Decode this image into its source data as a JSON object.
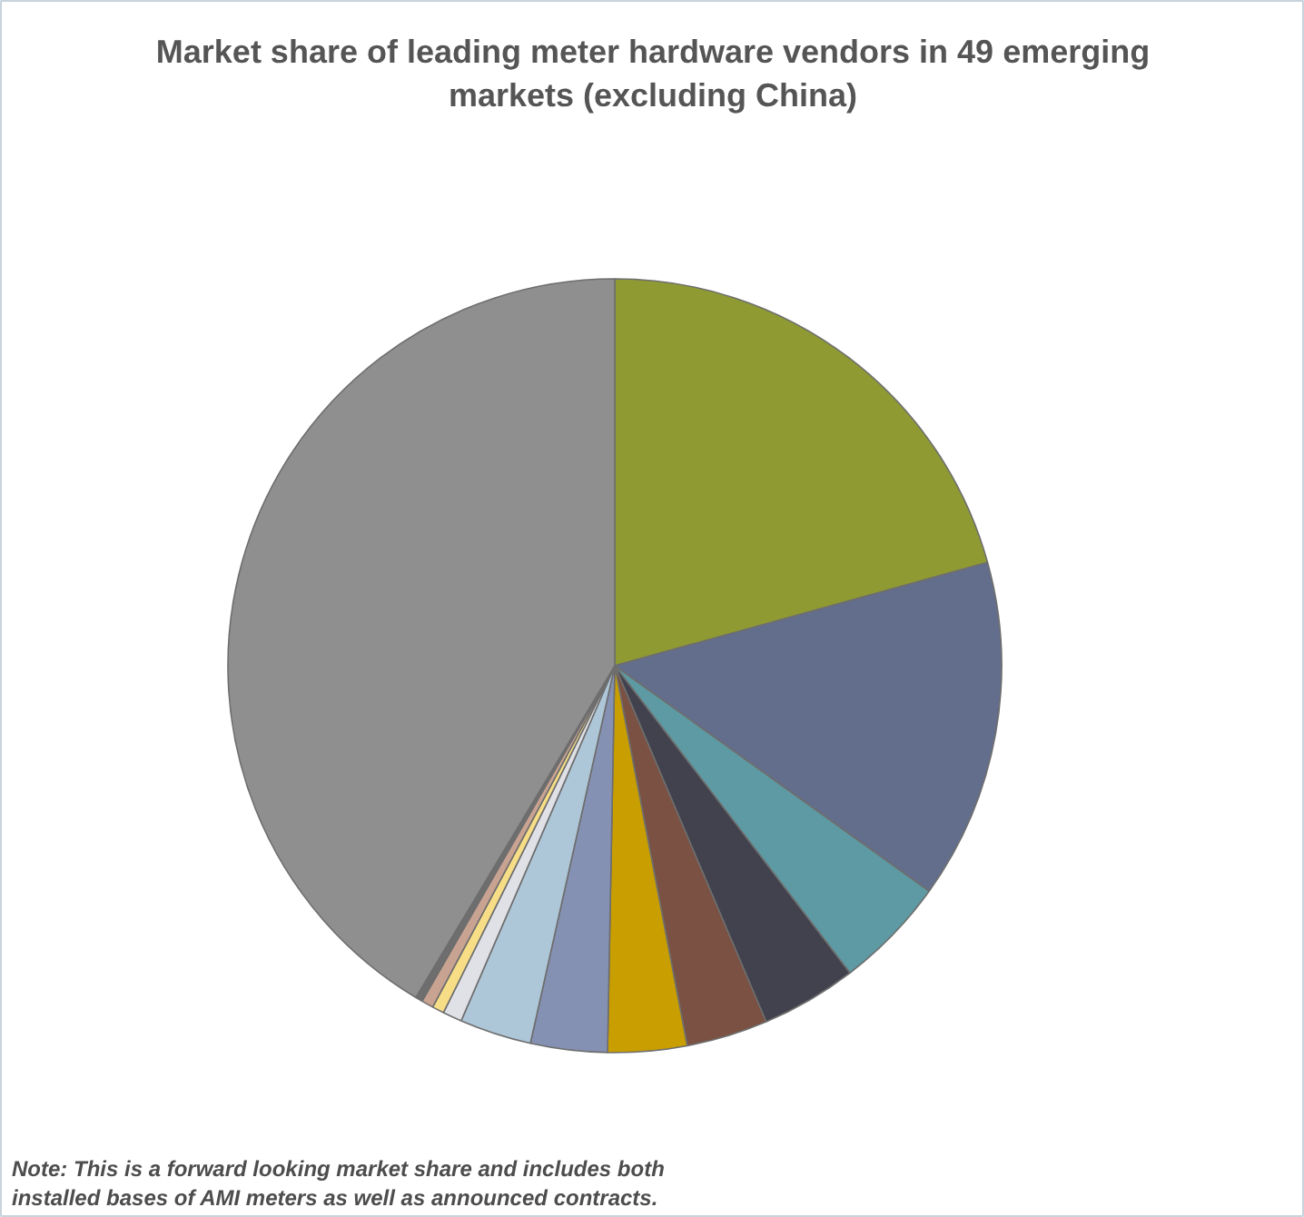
{
  "chart_data": {
    "type": "pie",
    "title": "Market share of leading meter hardware vendors in 49 emerging markets (excluding China)",
    "categories": [
      null,
      null,
      null,
      null,
      null,
      null,
      null,
      null,
      null,
      null,
      null,
      null,
      null
    ],
    "values": [
      20.7,
      14.2,
      4.7,
      4.0,
      3.4,
      3.3,
      3.2,
      3.0,
      0.8,
      0.5,
      0.5,
      0.3,
      41.4
    ],
    "colors": [
      "#8f9a33",
      "#636e8c",
      "#5e9aa3",
      "#41424e",
      "#7a5142",
      "#c99e00",
      "#8591b3",
      "#adc6d8",
      "#e0e1e6",
      "#f6dd86",
      "#c9a392",
      "#6e6e6e",
      "#8f8f8f"
    ],
    "annotations": [
      "Note: This is a forward looking market share and includes both installed bases of AMI meters as well as announced contracts."
    ]
  }
}
